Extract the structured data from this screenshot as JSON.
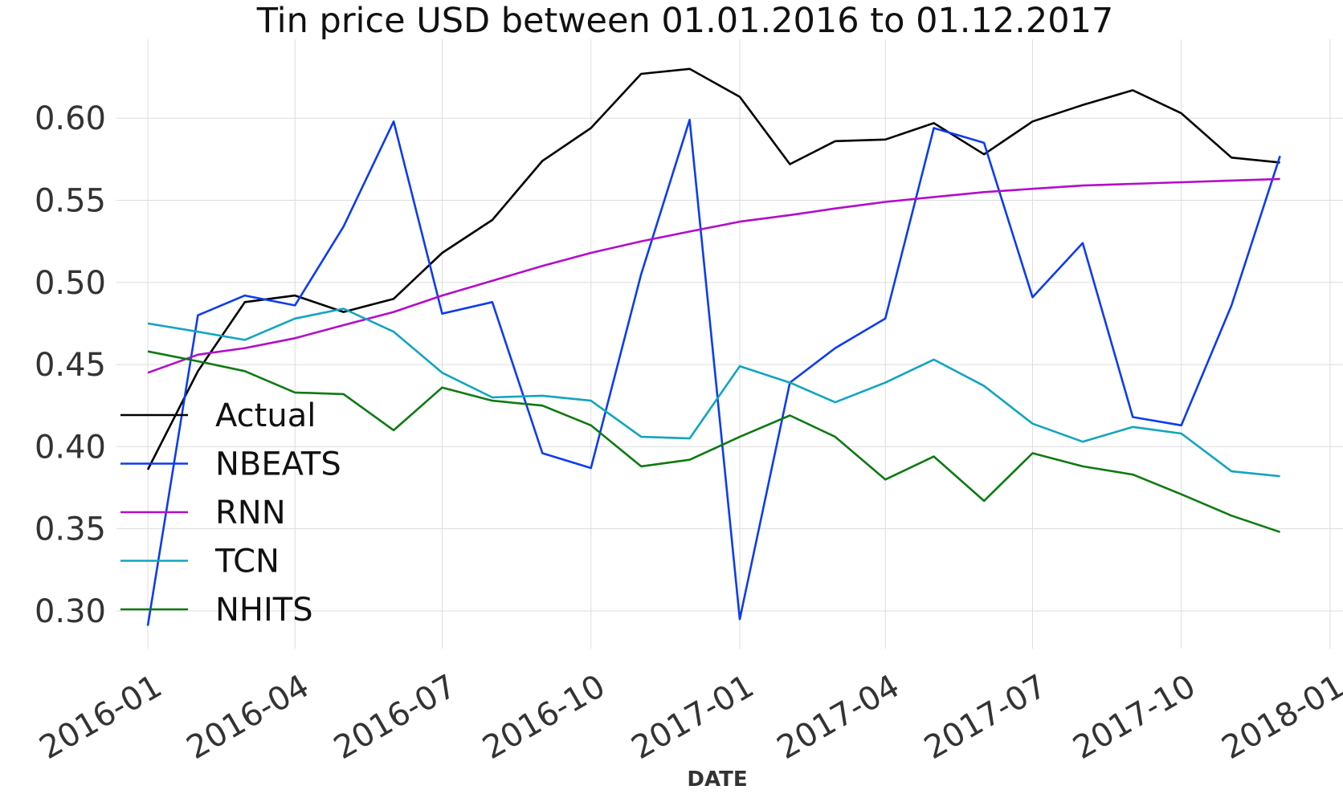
{
  "chart_data": {
    "type": "line",
    "title": "Tin price USD between 01.01.2016 to 01.12.2017",
    "xlabel": "DATE",
    "ylabel": "",
    "grid": true,
    "legend_position": "left",
    "x_ticks": [
      "2016-01",
      "2016-04",
      "2016-07",
      "2016-10",
      "2017-01",
      "2017-04",
      "2017-07",
      "2017-10",
      "2018-01"
    ],
    "x_range": [
      "2016-01-01",
      "2018-01-01"
    ],
    "y_ticks": [
      "0.30",
      "0.35",
      "0.40",
      "0.45",
      "0.50",
      "0.55",
      "0.60"
    ],
    "y_range": [
      0.277,
      0.648
    ],
    "x": [
      "2016-01-01",
      "2016-02-01",
      "2016-03-01",
      "2016-04-01",
      "2016-05-01",
      "2016-06-01",
      "2016-07-01",
      "2016-08-01",
      "2016-09-01",
      "2016-10-01",
      "2016-11-01",
      "2016-12-01",
      "2017-01-01",
      "2017-02-01",
      "2017-03-01",
      "2017-04-01",
      "2017-05-01",
      "2017-06-01",
      "2017-07-01",
      "2017-08-01",
      "2017-09-01",
      "2017-10-01",
      "2017-11-01",
      "2017-12-01"
    ],
    "series": [
      {
        "name": "Actual",
        "color": "#000000",
        "values": [
          0.386,
          0.446,
          0.488,
          0.492,
          0.482,
          0.49,
          0.518,
          0.538,
          0.574,
          0.594,
          0.627,
          0.63,
          0.613,
          0.572,
          0.586,
          0.587,
          0.597,
          0.578,
          0.598,
          0.608,
          0.617,
          0.603,
          0.576,
          0.573
        ]
      },
      {
        "name": "NBEATS",
        "color": "#0c3cf0",
        "values": [
          0.291,
          0.48,
          0.492,
          0.486,
          0.534,
          0.598,
          0.481,
          0.488,
          0.396,
          0.387,
          0.505,
          0.599,
          0.295,
          0.439,
          0.46,
          0.478,
          0.594,
          0.585,
          0.491,
          0.524,
          0.418,
          0.413,
          0.486,
          0.577
        ]
      },
      {
        "name": "RNN",
        "color": "#b30cc9",
        "values": [
          0.445,
          0.456,
          0.46,
          0.466,
          0.474,
          0.482,
          0.492,
          0.501,
          0.51,
          0.518,
          0.525,
          0.531,
          0.537,
          0.541,
          0.545,
          0.549,
          0.552,
          0.555,
          0.557,
          0.559,
          0.56,
          0.561,
          0.562,
          0.563
        ]
      },
      {
        "name": "TCN",
        "color": "#11a5bf",
        "values": [
          0.475,
          0.47,
          0.465,
          0.478,
          0.484,
          0.47,
          0.445,
          0.43,
          0.431,
          0.428,
          0.406,
          0.405,
          0.449,
          0.439,
          0.427,
          0.439,
          0.453,
          0.437,
          0.414,
          0.403,
          0.412,
          0.408,
          0.385,
          0.382
        ]
      },
      {
        "name": "NHITS",
        "color": "#0e7a12",
        "values": [
          0.458,
          0.452,
          0.446,
          0.433,
          0.432,
          0.41,
          0.436,
          0.428,
          0.425,
          0.413,
          0.388,
          0.392,
          0.406,
          0.419,
          0.406,
          0.38,
          0.394,
          0.367,
          0.396,
          0.388,
          0.383,
          0.371,
          0.358,
          0.348
        ]
      }
    ]
  }
}
